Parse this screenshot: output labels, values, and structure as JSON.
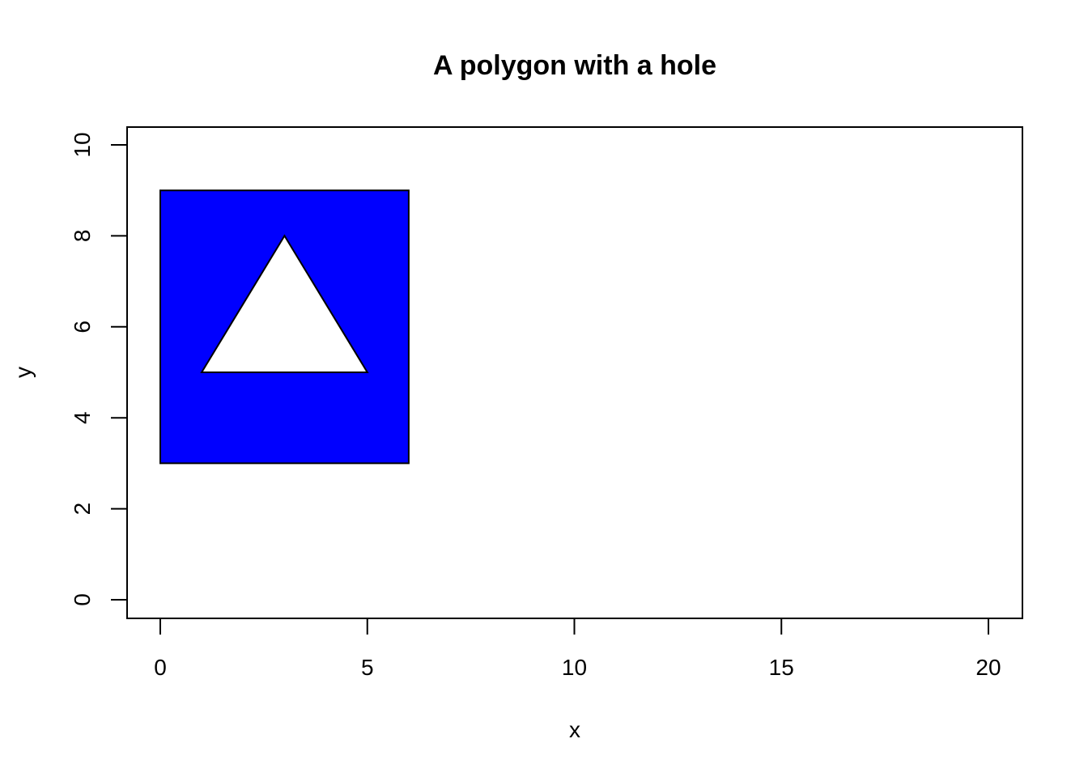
{
  "chart_data": {
    "type": "polygon",
    "title": "A polygon with a hole",
    "xlabel": "x",
    "ylabel": "y",
    "xlim": [
      0,
      20
    ],
    "ylim": [
      0,
      10
    ],
    "x_ticks": [
      0,
      5,
      10,
      15,
      20
    ],
    "y_ticks": [
      0,
      2,
      4,
      6,
      8,
      10
    ],
    "grid": false,
    "legend": "none",
    "fill_color": "#0000ff",
    "hole_color": "#ffffff",
    "outer_polygon": [
      [
        0,
        3
      ],
      [
        6,
        3
      ],
      [
        6,
        9
      ],
      [
        0,
        9
      ]
    ],
    "hole_polygon": [
      [
        1,
        5
      ],
      [
        5,
        5
      ],
      [
        3,
        8
      ]
    ]
  }
}
